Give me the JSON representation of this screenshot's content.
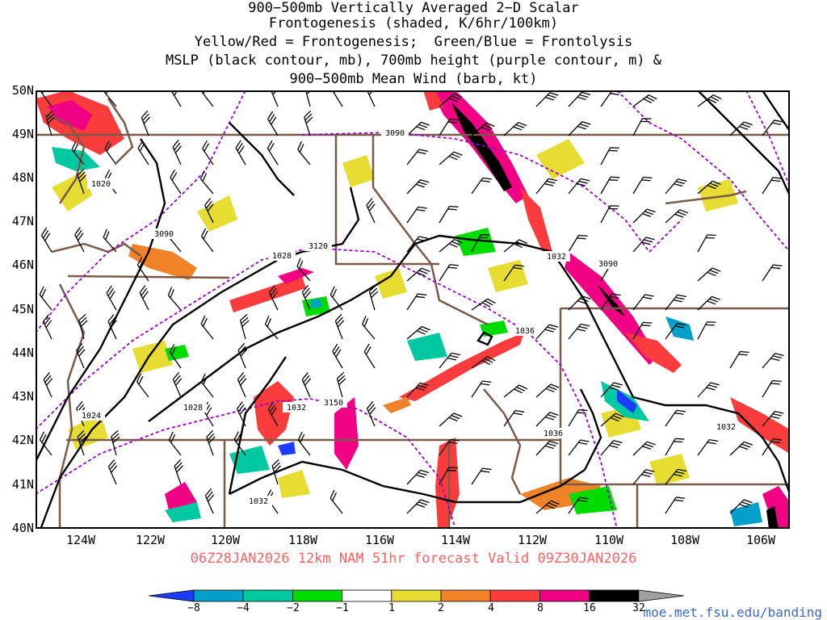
{
  "title": {
    "line1": "900−500mb Vertically Averaged 2−D Scalar",
    "line2": "Frontogenesis (shaded, K/6hr/100km)",
    "line3": "Yellow/Red = Frontogenesis;  Green/Blue = Frontolysis",
    "line4": "MSLP (black contour, mb), 700mb height (purple contour, m) &",
    "line5": "900−500mb Mean Wind (barb, kt)"
  },
  "caption": "06Z28JAN2026 12km NAM 51hr forecast Valid 09Z30JAN2026",
  "url": "moe.met.fsu.edu/banding",
  "lat_labels": [
    "50N",
    "49N",
    "48N",
    "47N",
    "46N",
    "45N",
    "44N",
    "43N",
    "42N",
    "41N",
    "40N"
  ],
  "lon_labels": [
    "124W",
    "122W",
    "120W",
    "118W",
    "116W",
    "114W",
    "112W",
    "110W",
    "108W",
    "106W"
  ],
  "colorbar": {
    "ticks": [
      "−8",
      "−4",
      "−2",
      "−1",
      "1",
      "2",
      "4",
      "8",
      "16",
      "32"
    ],
    "colors": [
      "#1e3cff",
      "#00a0c8",
      "#00c8a0",
      "#00dc00",
      "#ffffff",
      "#e6dc32",
      "#f08228",
      "#fa3c3c",
      "#f00082",
      "#000000",
      "#a0a0a0"
    ]
  },
  "contour_labels": {
    "mslp": [
      "1020",
      "1024",
      "1028",
      "1028",
      "1032",
      "1032",
      "1032",
      "1032",
      "1036",
      "1036"
    ],
    "height": [
      "3090",
      "3090",
      "3090",
      "3120",
      "3150"
    ]
  },
  "colors": {
    "mslp": "#000000",
    "height": "#9a00d0",
    "borders": "#7a5a48",
    "caption": "#ff6060",
    "url": "#3a6ad0"
  }
}
